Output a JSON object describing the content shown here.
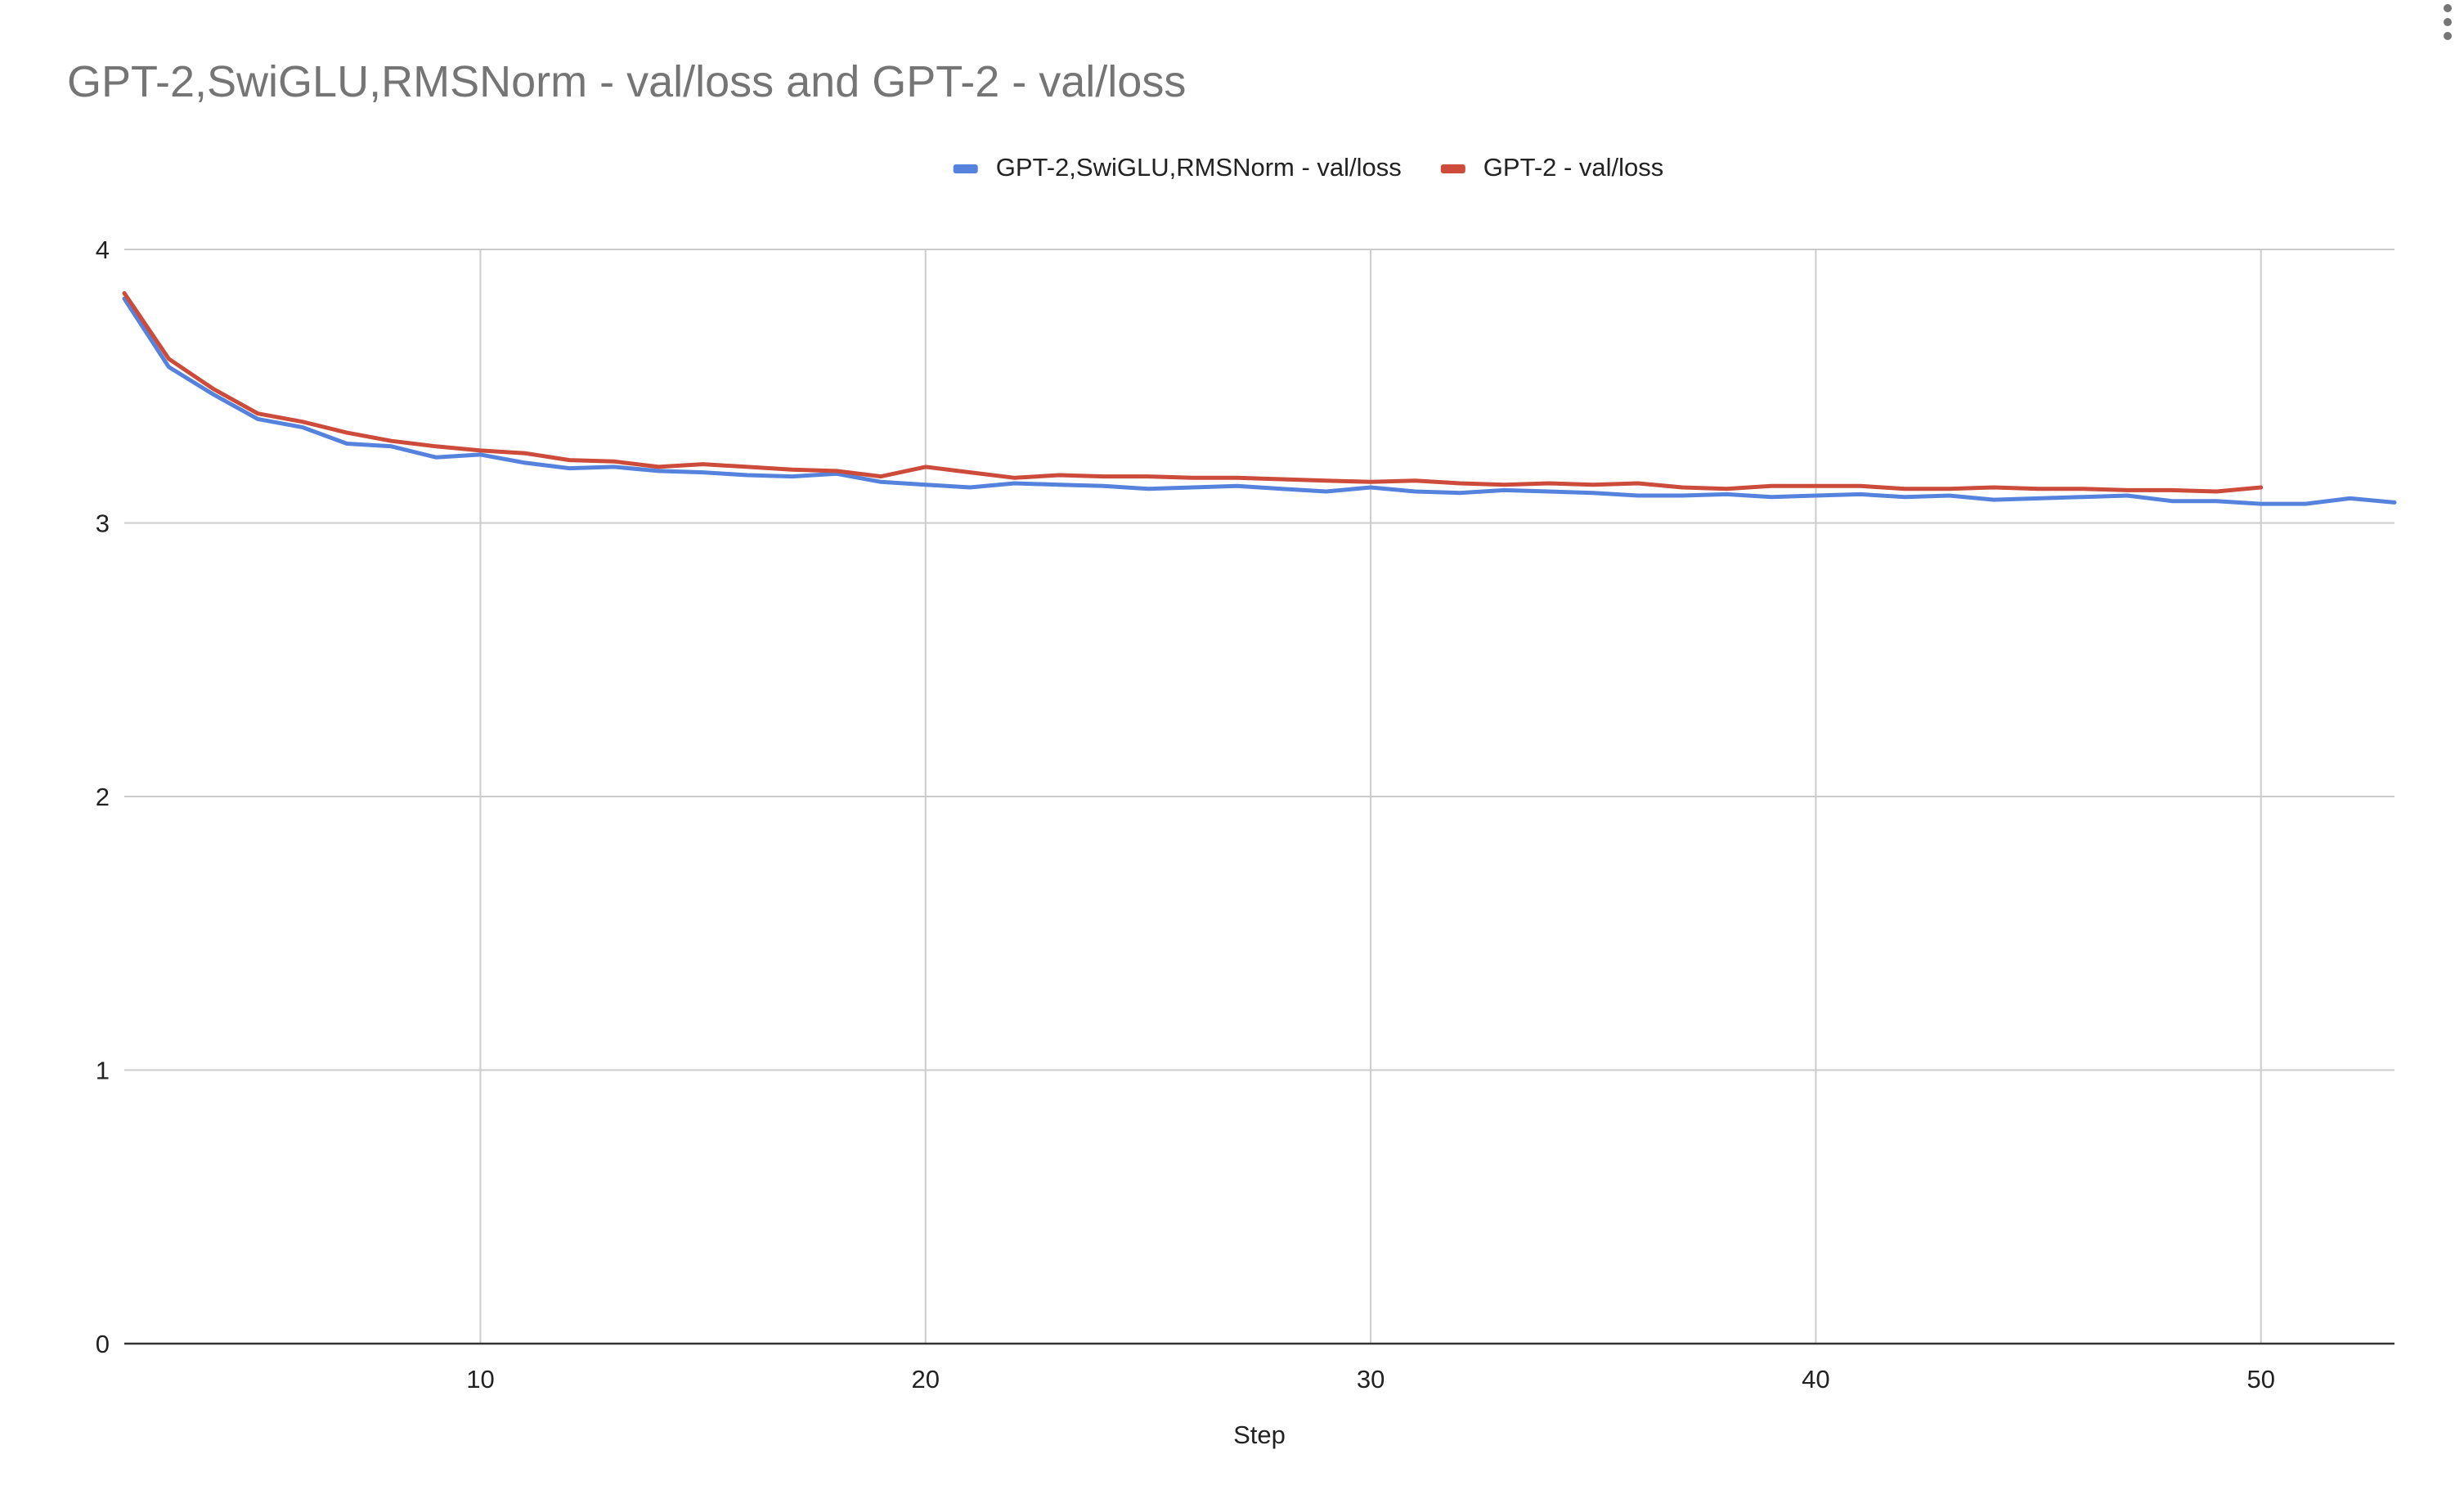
{
  "chart_data": {
    "type": "line",
    "title": "GPT-2,SwiGLU,RMSNorm - val/loss and GPT-2 - val/loss",
    "xlabel": "Step",
    "ylabel": "",
    "xlim": [
      2,
      53
    ],
    "ylim": [
      0,
      4
    ],
    "x_ticks": [
      10,
      20,
      30,
      40,
      50
    ],
    "y_ticks": [
      0,
      1,
      2,
      3,
      4
    ],
    "grid": true,
    "legend_position": "top-center",
    "series": [
      {
        "name": "GPT-2,SwiGLU,RMSNorm - val/loss",
        "color": "#5582dd",
        "x": [
          2,
          3,
          4,
          5,
          6,
          7,
          8,
          9,
          10,
          11,
          12,
          13,
          14,
          15,
          16,
          17,
          18,
          19,
          20,
          21,
          22,
          23,
          24,
          25,
          26,
          27,
          28,
          29,
          30,
          31,
          32,
          33,
          34,
          35,
          36,
          37,
          38,
          39,
          40,
          41,
          42,
          43,
          44,
          45,
          46,
          47,
          48,
          49,
          50,
          51,
          52,
          53
        ],
        "values": [
          3.82,
          3.57,
          3.47,
          3.38,
          3.35,
          3.29,
          3.28,
          3.24,
          3.25,
          3.22,
          3.2,
          3.205,
          3.19,
          3.185,
          3.175,
          3.17,
          3.18,
          3.15,
          3.14,
          3.13,
          3.145,
          3.14,
          3.135,
          3.125,
          3.13,
          3.135,
          3.125,
          3.115,
          3.13,
          3.115,
          3.11,
          3.12,
          3.115,
          3.11,
          3.1,
          3.1,
          3.105,
          3.095,
          3.1,
          3.105,
          3.095,
          3.1,
          3.085,
          3.09,
          3.095,
          3.1,
          3.08,
          3.08,
          3.07,
          3.07,
          3.09,
          3.075
        ]
      },
      {
        "name": "GPT-2 - val/loss",
        "color": "#cc4b3a",
        "x": [
          2,
          3,
          4,
          5,
          6,
          7,
          8,
          9,
          10,
          11,
          12,
          13,
          14,
          15,
          16,
          17,
          18,
          19,
          20,
          21,
          22,
          23,
          24,
          25,
          26,
          27,
          28,
          29,
          30,
          31,
          32,
          33,
          34,
          35,
          36,
          37,
          38,
          39,
          40,
          41,
          42,
          43,
          44,
          45,
          46,
          47,
          48,
          49,
          50
        ],
        "values": [
          3.84,
          3.6,
          3.49,
          3.4,
          3.37,
          3.33,
          3.3,
          3.28,
          3.265,
          3.255,
          3.23,
          3.225,
          3.205,
          3.215,
          3.205,
          3.195,
          3.19,
          3.17,
          3.205,
          3.185,
          3.165,
          3.175,
          3.17,
          3.17,
          3.165,
          3.165,
          3.16,
          3.155,
          3.15,
          3.155,
          3.145,
          3.14,
          3.145,
          3.14,
          3.145,
          3.13,
          3.125,
          3.135,
          3.135,
          3.135,
          3.125,
          3.125,
          3.13,
          3.125,
          3.125,
          3.12,
          3.12,
          3.115,
          3.13
        ]
      }
    ]
  }
}
